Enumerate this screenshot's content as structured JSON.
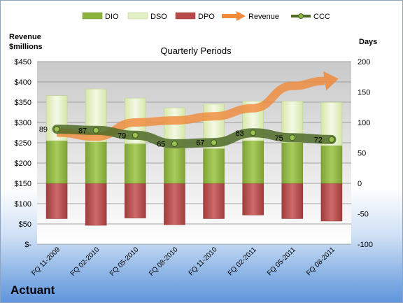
{
  "company": "Actuant",
  "chart_data": {
    "type": "bar",
    "title": "Quarterly Periods",
    "left_axis_label_line1": "Revenue",
    "left_axis_label_line2": "$millions",
    "right_axis_label": "Days",
    "categories": [
      "FQ 11-2009",
      "FQ 02-2010",
      "FQ 05-2010",
      "FQ 08-2010",
      "FQ 11-2010",
      "FQ 02-2011",
      "FQ 05-2011",
      "FQ 08-2011"
    ],
    "left_ylim": [
      0,
      450
    ],
    "left_ticks": [
      "$-",
      "$50",
      "$100",
      "$150",
      "$200",
      "$250",
      "$300",
      "$350",
      "$400",
      "$450"
    ],
    "right_ylim": [
      -100,
      200
    ],
    "right_ticks": [
      "-100",
      "-50",
      "0",
      "50",
      "100",
      "150",
      "200"
    ],
    "legend_position": "top",
    "series": [
      {
        "name": "DIO",
        "axis": "right",
        "kind": "stacked-bar",
        "color": "#8db33f",
        "values": [
          70,
          68,
          65,
          58,
          57,
          70,
          67,
          62
        ]
      },
      {
        "name": "DSO",
        "axis": "right",
        "kind": "stacked-bar",
        "color": "#e3efc6",
        "values": [
          74,
          87,
          75,
          66,
          73,
          65,
          68,
          71
        ]
      },
      {
        "name": "DPO",
        "axis": "right",
        "kind": "negative-bar",
        "color": "#b84a4a",
        "values": [
          -58,
          -69,
          -57,
          -68,
          -58,
          -52,
          -58,
          -62
        ]
      },
      {
        "name": "Revenue",
        "axis": "left",
        "kind": "arrow-line",
        "color": "#f08a3a",
        "values": [
          275,
          265,
          300,
          305,
          315,
          335,
          390,
          405
        ]
      },
      {
        "name": "CCC",
        "axis": "right",
        "kind": "line-markers",
        "color": "#4f6b28",
        "values": [
          89,
          87,
          79,
          65,
          67,
          83,
          75,
          72
        ],
        "labels": [
          "89",
          "87",
          "79",
          "65",
          "67",
          "83",
          "75",
          "72"
        ]
      }
    ]
  }
}
